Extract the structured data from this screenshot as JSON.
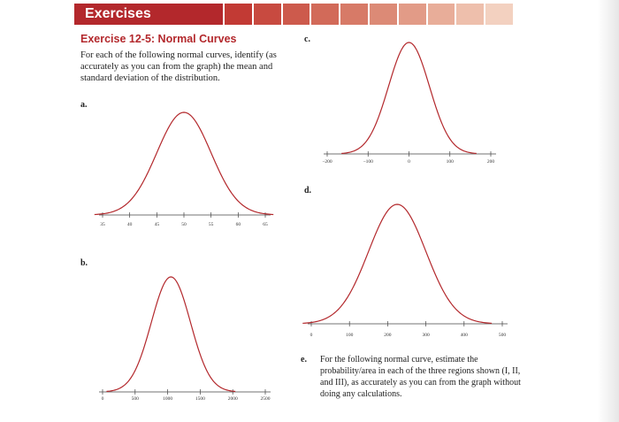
{
  "header": {
    "banner_title": "Exercises",
    "strip_colors": [
      "#c23a34",
      "#c84a40",
      "#cd5a4c",
      "#d26a59",
      "#d77a67",
      "#dc8a76",
      "#e29b87",
      "#e8ad99",
      "#eebfac",
      "#f3d1c0"
    ]
  },
  "exercise": {
    "title": "Exercise 12-5: Normal Curves",
    "intro": "For each of the following normal curves, identify (as accurately as you can from the graph) the mean and standard deviation of the distribution."
  },
  "parts": {
    "a": {
      "label": "a.",
      "ticks": [
        "35",
        "40",
        "45",
        "50",
        "55",
        "60",
        "65"
      ]
    },
    "b": {
      "label": "b.",
      "ticks": [
        "0",
        "500",
        "1000",
        "1500",
        "2000",
        "2500"
      ]
    },
    "c": {
      "label": "c.",
      "ticks": [
        "−200",
        "−100",
        "0",
        "100",
        "200"
      ]
    },
    "d": {
      "label": "d.",
      "ticks": [
        "0",
        "100",
        "200",
        "300",
        "400",
        "500"
      ]
    },
    "e": {
      "label": "e.",
      "text": "For the following normal curve, estimate the probability/area in each of the three regions shown (I, II, and III), as accurately as you can from the graph without doing any calculations."
    }
  },
  "chart_data": [
    {
      "type": "line",
      "id": "a",
      "x_ticks": [
        35,
        40,
        45,
        50,
        55,
        60,
        65
      ],
      "xlim": [
        35,
        65
      ],
      "mean": 50,
      "sd": 5
    },
    {
      "type": "line",
      "id": "b",
      "x_ticks": [
        0,
        500,
        1000,
        1500,
        2000,
        2500
      ],
      "xlim": [
        0,
        2500
      ],
      "mean": 1050,
      "sd": 300
    },
    {
      "type": "line",
      "id": "c",
      "x_ticks": [
        -200,
        -100,
        0,
        100,
        200
      ],
      "xlim": [
        -200,
        200
      ],
      "mean": 0,
      "sd": 50
    },
    {
      "type": "line",
      "id": "d",
      "x_ticks": [
        0,
        100,
        200,
        300,
        400,
        500
      ],
      "xlim": [
        0,
        500
      ],
      "mean": 225,
      "sd": 75
    }
  ],
  "colors": {
    "accent": "#b3282c"
  }
}
